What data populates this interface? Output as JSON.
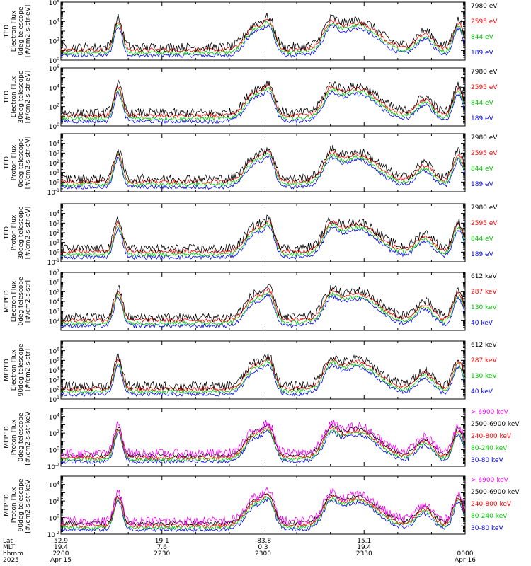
{
  "chart_data": [
    {
      "type": "line",
      "instrument": "TED",
      "ylabel": [
        "TED",
        "Electron Flux",
        "0deg telescope",
        "[#/cm2-s-str-eV]"
      ],
      "ylim": [
        1,
        1000000
      ],
      "yscale": "log",
      "y_ticks": [
        "10^0",
        "10^2",
        "10^4",
        "10^6"
      ],
      "legend_location": "right",
      "series": [
        {
          "name": "7980 eV",
          "color": "#000000"
        },
        {
          "name": "2595 eV",
          "color": "#ff0000"
        },
        {
          "name": "844 eV",
          "color": "#00cc00"
        },
        {
          "name": "189 eV",
          "color": "#0000ff"
        }
      ]
    },
    {
      "type": "line",
      "instrument": "TED",
      "ylabel": [
        "TED",
        "Electron Flux",
        "30deg telescope",
        "[#/cm2-s-str-eV]"
      ],
      "ylim": [
        1,
        1000000
      ],
      "yscale": "log",
      "y_ticks": [
        "10^0",
        "10^2",
        "10^4",
        "10^6"
      ],
      "legend_location": "right",
      "series": [
        {
          "name": "7980 eV",
          "color": "#000000"
        },
        {
          "name": "2595 eV",
          "color": "#ff0000"
        },
        {
          "name": "844 eV",
          "color": "#00cc00"
        },
        {
          "name": "189 eV",
          "color": "#0000ff"
        }
      ]
    },
    {
      "type": "line",
      "instrument": "TED",
      "ylabel": [
        "TED",
        "Proton Flux",
        "0deg telescope",
        "[#/cm2-s-str-eV]"
      ],
      "ylim": [
        0.1,
        100000
      ],
      "yscale": "log",
      "y_ticks": [
        "10^-1",
        "10^0",
        "10^1",
        "10^2",
        "10^3",
        "10^4"
      ],
      "legend_location": "right",
      "series": [
        {
          "name": "7980 eV",
          "color": "#000000"
        },
        {
          "name": "2595 eV",
          "color": "#ff0000"
        },
        {
          "name": "844 eV",
          "color": "#00cc00"
        },
        {
          "name": "189 eV",
          "color": "#0000ff"
        }
      ]
    },
    {
      "type": "line",
      "instrument": "TED",
      "ylabel": [
        "TED",
        "Proton Flux",
        "30deg telescope",
        "[#/cm2-s-str-eV]"
      ],
      "ylim": [
        0.1,
        100000
      ],
      "yscale": "log",
      "y_ticks": [
        "10^-1",
        "10^0",
        "10^1",
        "10^2",
        "10^3",
        "10^4"
      ],
      "legend_location": "right",
      "series": [
        {
          "name": "7980 eV",
          "color": "#000000"
        },
        {
          "name": "2595 eV",
          "color": "#ff0000"
        },
        {
          "name": "844 eV",
          "color": "#00cc00"
        },
        {
          "name": "189 eV",
          "color": "#0000ff"
        }
      ]
    },
    {
      "type": "line",
      "instrument": "MEPED",
      "ylabel": [
        "MEPED",
        "Electron Flux",
        "0deg telescope",
        "[#/cm2-s-str]"
      ],
      "ylim": [
        10,
        10000000
      ],
      "yscale": "log",
      "y_ticks": [
        "10^2",
        "10^3",
        "10^4",
        "10^5",
        "10^6",
        "10^7"
      ],
      "legend_location": "right",
      "series": [
        {
          "name": "612 keV",
          "color": "#000000"
        },
        {
          "name": "287 keV",
          "color": "#ff0000"
        },
        {
          "name": "130 keV",
          "color": "#00cc00"
        },
        {
          "name": "40 keV",
          "color": "#0000ff"
        }
      ]
    },
    {
      "type": "line",
      "instrument": "MEPED",
      "ylabel": [
        "MEPED",
        "Electron Flux",
        "90deg telescope",
        "[#/cm2-s-str]"
      ],
      "ylim": [
        10,
        10000000
      ],
      "yscale": "log",
      "y_ticks": [
        "10^1",
        "10^2",
        "10^3",
        "10^4",
        "10^5",
        "10^6"
      ],
      "legend_location": "right",
      "series": [
        {
          "name": "612 keV",
          "color": "#000000"
        },
        {
          "name": "287 keV",
          "color": "#ff0000"
        },
        {
          "name": "130 keV",
          "color": "#00cc00"
        },
        {
          "name": "40 keV",
          "color": "#0000ff"
        }
      ]
    },
    {
      "type": "line",
      "instrument": "MEPED",
      "ylabel": [
        "MEPED",
        "Proton Flux",
        "0deg telescope",
        "[#/cm2-s-str-keV]"
      ],
      "ylim": [
        0.01,
        100000
      ],
      "yscale": "log",
      "y_ticks": [
        "10^-2",
        "10^0",
        "10^2",
        "10^4"
      ],
      "legend_location": "right",
      "series": [
        {
          "name": "> 6900 keV",
          "color": "#ff00ff"
        },
        {
          "name": "2500-6900 keV",
          "color": "#000000"
        },
        {
          "name": "240-800 keV",
          "color": "#ff0000"
        },
        {
          "name": "80-240 keV",
          "color": "#00cc00"
        },
        {
          "name": "30-80 keV",
          "color": "#0000ff"
        }
      ]
    },
    {
      "type": "line",
      "instrument": "MEPED",
      "ylabel": [
        "MEPED",
        "Proton Flux",
        "90deg telescope",
        "[#/cm2-s-str-keV]"
      ],
      "ylim": [
        0.01,
        100000
      ],
      "yscale": "log",
      "y_ticks": [
        "10^-2",
        "10^0",
        "10^2",
        "10^4"
      ],
      "legend_location": "right",
      "series": [
        {
          "name": "> 6900 keV",
          "color": "#ff00ff"
        },
        {
          "name": "2500-6900 keV",
          "color": "#000000"
        },
        {
          "name": "240-800 keV",
          "color": "#ff0000"
        },
        {
          "name": "80-240 keV",
          "color": "#00cc00"
        },
        {
          "name": "30-80 keV",
          "color": "#0000ff"
        }
      ]
    }
  ],
  "x_axis": {
    "row_labels": [
      "Lat",
      "MLT",
      "hhmm",
      "2025"
    ],
    "ticks": [
      {
        "t": 0,
        "lat": "52.9",
        "mlt": "19.4",
        "hhmm": "2200",
        "date": "Apr 15"
      },
      {
        "t": 30,
        "lat": "19.1",
        "mlt": "7.6",
        "hhmm": "2230",
        "date": ""
      },
      {
        "t": 60,
        "lat": "-83.8",
        "mlt": "0.3",
        "hhmm": "2300",
        "date": ""
      },
      {
        "t": 90,
        "lat": "15.1",
        "mlt": "19.4",
        "hhmm": "2330",
        "date": ""
      },
      {
        "t": 120,
        "lat": "",
        "mlt": "",
        "hhmm": "0000",
        "date": "Apr 16"
      }
    ],
    "range_minutes": [
      0,
      120
    ]
  }
}
